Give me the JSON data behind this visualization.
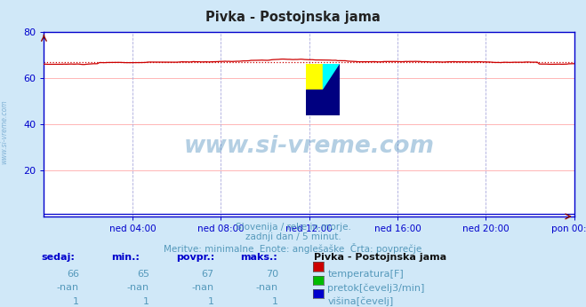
{
  "title": "Pivka - Postojnska jama",
  "bg_color": "#d0e8f8",
  "plot_bg_color": "#ffffff",
  "line_color": "#cc0000",
  "dotted_line_color": "#cc0000",
  "grid_color_h": "#ffaaaa",
  "grid_color_v": "#aaaadd",
  "axis_color": "#0000cc",
  "text_color": "#5599bb",
  "watermark_color": "#4488bb",
  "y_min": 0,
  "y_max": 80,
  "y_ticks": [
    20,
    40,
    60,
    80
  ],
  "x_labels": [
    "ned 04:00",
    "ned 08:00",
    "ned 12:00",
    "ned 16:00",
    "ned 20:00",
    "pon 00:00"
  ],
  "x_tick_positions": [
    0.167,
    0.333,
    0.5,
    0.667,
    0.833,
    1.0
  ],
  "subtitle1": "Slovenija / reke in morje.",
  "subtitle2": "zadnji dan / 5 minut.",
  "subtitle3": "Meritve: minimalne  Enote: anglešaške  Črta: povprečje",
  "table_header": "Pivka - Postojnska jama",
  "col_headers": [
    "sedaj:",
    "min.:",
    "povpr.:",
    "maks.:"
  ],
  "rows": [
    {
      "label": "temperatura[F]",
      "color": "#cc0000",
      "values": [
        "66",
        "65",
        "67",
        "70"
      ]
    },
    {
      "label": "pretok[čevelj3/min]",
      "color": "#00bb00",
      "values": [
        "-nan",
        "-nan",
        "-nan",
        "-nan"
      ]
    },
    {
      "label": "višina[čevelj]",
      "color": "#0000cc",
      "values": [
        "1",
        "1",
        "1",
        "1"
      ]
    }
  ],
  "temp_mean": 67,
  "n_points": 288,
  "sidebar_text": "www.si-vreme.com",
  "watermark_text": "www.si-vreme.com"
}
